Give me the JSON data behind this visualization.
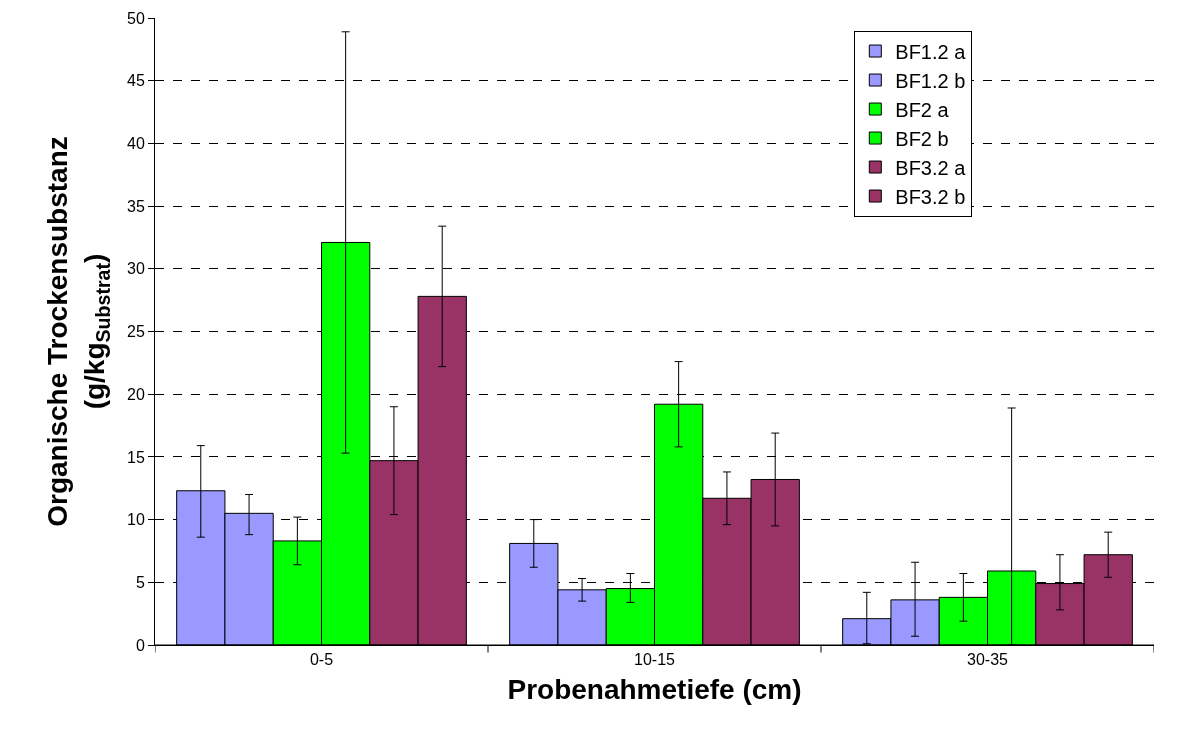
{
  "chart_data": {
    "type": "bar",
    "xlabel": "Probenahmetiefe (cm)",
    "ylabel": "Organische Trockensubstanz\n(g/kg$_{Substrat}$)",
    "categories": [
      "0-5",
      "10-15",
      "30-35"
    ],
    "series": [
      {
        "name": "BF1.2 a",
        "color": "#9999ff",
        "values": [
          12.3,
          8.1,
          2.1
        ],
        "errors": [
          [
            8.6,
            15.9
          ],
          [
            6.2,
            10.0
          ],
          [
            0.1,
            4.2
          ]
        ]
      },
      {
        "name": "BF1.2 b",
        "color": "#9999ff",
        "values": [
          10.5,
          4.4,
          3.6
        ],
        "errors": [
          [
            8.8,
            12.0
          ],
          [
            3.5,
            5.3
          ],
          [
            0.7,
            6.6
          ]
        ]
      },
      {
        "name": "BF2 a",
        "color": "#00ff00",
        "values": [
          8.3,
          4.5,
          3.8
        ],
        "errors": [
          [
            6.4,
            10.2
          ],
          [
            3.4,
            5.7
          ],
          [
            1.9,
            5.7
          ]
        ]
      },
      {
        "name": "BF2 b",
        "color": "#00ff00",
        "values": [
          32.1,
          19.2,
          5.9
        ],
        "errors": [
          [
            15.3,
            48.9
          ],
          [
            15.8,
            22.6
          ],
          [
            0,
            18.9
          ]
        ]
      },
      {
        "name": "BF3.2 a",
        "color": "#993366",
        "values": [
          14.7,
          11.7,
          4.9
        ],
        "errors": [
          [
            10.4,
            19.0
          ],
          [
            9.6,
            13.8
          ],
          [
            2.8,
            7.2
          ]
        ]
      },
      {
        "name": "BF3.2 b",
        "color": "#993366",
        "values": [
          27.8,
          13.2,
          7.2
        ],
        "errors": [
          [
            22.2,
            33.4
          ],
          [
            9.5,
            16.9
          ],
          [
            5.4,
            9.0
          ]
        ]
      }
    ],
    "ylim": [
      0,
      50
    ],
    "yticks": [
      0,
      5,
      10,
      15,
      20,
      25,
      30,
      35,
      40,
      45,
      50
    ],
    "grid": "y",
    "legend": "top right"
  }
}
